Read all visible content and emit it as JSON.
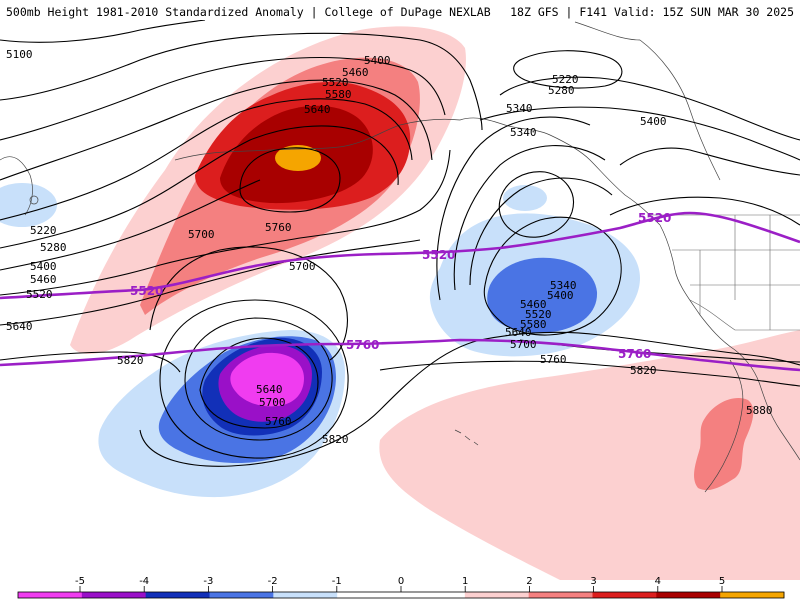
{
  "header": {
    "title": "500mb Height 1981-2010 Standardized Anomaly | College of DuPage NEXLAB",
    "valid": "18Z GFS | F141 Valid: 15Z SUN MAR 30 2025"
  },
  "colors": {
    "neg5": "#f03cf0",
    "neg4": "#9a10c8",
    "neg3": "#1230b8",
    "neg2": "#4a74e4",
    "neg1": "#c8e0fa",
    "pos1": "#fcd0d0",
    "pos2": "#f48080",
    "pos3": "#dc1e1e",
    "pos4": "#a80000",
    "pos5": "#f5a500",
    "contour": "#000000",
    "highlight": "#9b1fc6",
    "coast": "#444444"
  },
  "contour_labels": [
    {
      "id": "c5100",
      "text": "5100"
    },
    {
      "id": "c5400a",
      "text": "5400"
    },
    {
      "id": "c5460a",
      "text": "5460"
    },
    {
      "id": "c5520a",
      "text": "5520"
    },
    {
      "id": "c5580a",
      "text": "5580"
    },
    {
      "id": "c5640a",
      "text": "5640"
    },
    {
      "id": "c5220a",
      "text": "5220"
    },
    {
      "id": "c5280a",
      "text": "5280"
    },
    {
      "id": "c5340a",
      "text": "5340"
    },
    {
      "id": "c5340b",
      "text": "5340"
    },
    {
      "id": "c5400b",
      "text": "5400"
    },
    {
      "id": "c5220b",
      "text": "5220"
    },
    {
      "id": "c5280b",
      "text": "5280"
    },
    {
      "id": "c5400c",
      "text": "5400"
    },
    {
      "id": "c5460b",
      "text": "5460"
    },
    {
      "id": "c5520b",
      "text": "5520"
    },
    {
      "id": "c5640b",
      "text": "5640"
    },
    {
      "id": "c5700a",
      "text": "5700"
    },
    {
      "id": "c5760a",
      "text": "5760"
    },
    {
      "id": "c5700b",
      "text": "5700"
    },
    {
      "id": "c5820a",
      "text": "5820"
    },
    {
      "id": "c5640c",
      "text": "5640"
    },
    {
      "id": "c5700c",
      "text": "5700"
    },
    {
      "id": "c5760b",
      "text": "5760"
    },
    {
      "id": "c5820b",
      "text": "5820"
    },
    {
      "id": "c5340c",
      "text": "5340"
    },
    {
      "id": "c5400d",
      "text": "5400"
    },
    {
      "id": "c5460c",
      "text": "5460"
    },
    {
      "id": "c5520c",
      "text": "5520"
    },
    {
      "id": "c5580b",
      "text": "5580"
    },
    {
      "id": "c5640d",
      "text": "5640"
    },
    {
      "id": "c5700d",
      "text": "5700"
    },
    {
      "id": "c5760c",
      "text": "5760"
    },
    {
      "id": "c5820c",
      "text": "5820"
    },
    {
      "id": "c5880",
      "text": "5880"
    }
  ],
  "highlight_labels": [
    {
      "id": "p5520a",
      "text": "5520"
    },
    {
      "id": "p5520b",
      "text": "5520"
    },
    {
      "id": "p5520c",
      "text": "5520"
    },
    {
      "id": "p5760a",
      "text": "5760"
    },
    {
      "id": "p5760b",
      "text": "5760"
    }
  ],
  "legend": {
    "ticks": [
      "-5",
      "-4",
      "-3",
      "-2",
      "-1",
      "0",
      "1",
      "2",
      "3",
      "4",
      "5"
    ],
    "colors": [
      "#f03cf0",
      "#9a10c8",
      "#1230b8",
      "#4a74e4",
      "#c8e0fa",
      "#ffffff",
      "#ffffff",
      "#fcd0d0",
      "#f48080",
      "#dc1e1e",
      "#a80000",
      "#f5a500"
    ]
  }
}
